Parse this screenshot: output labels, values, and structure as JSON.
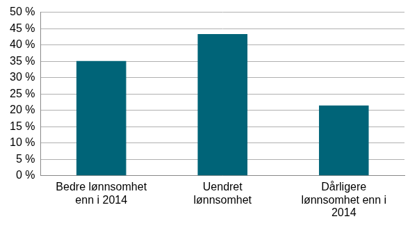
{
  "chart_data": {
    "type": "bar",
    "categories": [
      [
        "Bedre lønnsomhet",
        "enn i 2014"
      ],
      [
        "Uendret",
        "lønnsomhet"
      ],
      [
        "Dårligere",
        "lønnsomhet enn i",
        "2014"
      ]
    ],
    "values": [
      35.1,
      43.3,
      21.5
    ],
    "color": "#006478",
    "ylim": [
      0,
      50
    ],
    "yticks": [
      {
        "value": 0,
        "label": "0 %"
      },
      {
        "value": 5,
        "label": "5 %"
      },
      {
        "value": 10,
        "label": "10 %"
      },
      {
        "value": 15,
        "label": "15 %"
      },
      {
        "value": 20,
        "label": "20 %"
      },
      {
        "value": 25,
        "label": "25 %"
      },
      {
        "value": 30,
        "label": "30 %"
      },
      {
        "value": 35,
        "label": "35 %"
      },
      {
        "value": 40,
        "label": "40 %"
      },
      {
        "value": 45,
        "label": "45 %"
      },
      {
        "value": 50,
        "label": "50 %"
      }
    ],
    "grid": true
  }
}
